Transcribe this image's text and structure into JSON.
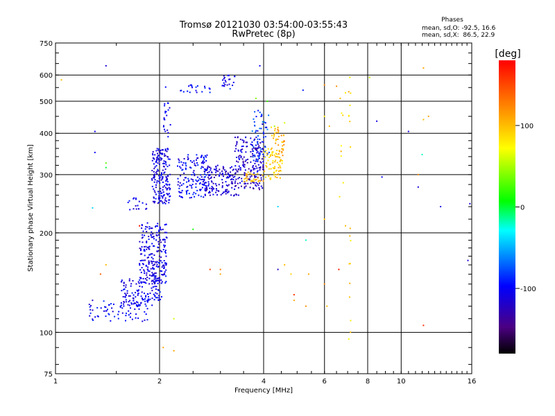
{
  "chart_data": {
    "type": "scatter",
    "title": "Tromsø 20121030 03:54:00-03:55:43",
    "subtitle": "RwPretec (8p)",
    "xlabel": "Frequency [MHz]",
    "ylabel": "Stationary phase Virtual Height [km]",
    "x_scale": "log",
    "y_scale": "log",
    "xlim": [
      1,
      16
    ],
    "ylim": [
      75,
      750
    ],
    "x_ticks": [
      1,
      2,
      4,
      6,
      8,
      10,
      16
    ],
    "x_tick_labels": [
      "1",
      "2",
      "4",
      "6",
      "8",
      "10",
      "16"
    ],
    "y_ticks": [
      75,
      100,
      200,
      300,
      400,
      500,
      600,
      750
    ],
    "y_tick_labels": [
      "75",
      "100",
      "200",
      "300",
      "400",
      "500",
      "600",
      "750"
    ],
    "grid": true,
    "phase_box": {
      "title": "Phases",
      "line_o": "mean, sd,O: -92.5, 16.6",
      "line_x": "mean, sd,X:  86.5, 22.9"
    },
    "colorbar": {
      "label": "[deg]",
      "range": [
        -180,
        180
      ],
      "ticks": [
        100,
        0,
        -100
      ],
      "tick_labels": [
        "100",
        "0",
        "-100"
      ],
      "colormap": "rainbow (black-purple-blue-cyan-green-yellow-orange-red)"
    },
    "regions": [
      {
        "f": [
          1.25,
          1.85
        ],
        "h": [
          108,
          125
        ],
        "n": 70,
        "p": [
          -120,
          -85
        ]
      },
      {
        "f": [
          1.55,
          2.05
        ],
        "h": [
          120,
          145
        ],
        "n": 130,
        "p": [
          -120,
          -85
        ]
      },
      {
        "f": [
          1.75,
          2.1
        ],
        "h": [
          140,
          215
        ],
        "n": 230,
        "p": [
          -125,
          -90
        ]
      },
      {
        "f": [
          1.9,
          2.15
        ],
        "h": [
          245,
          360
        ],
        "n": 190,
        "p": [
          -125,
          -90
        ]
      },
      {
        "f": [
          2.05,
          2.15
        ],
        "h": [
          380,
          560
        ],
        "n": 22,
        "p": [
          -120,
          -90
        ]
      },
      {
        "f": [
          2.25,
          2.75
        ],
        "h": [
          255,
          345
        ],
        "n": 150,
        "p": [
          -120,
          -80
        ]
      },
      {
        "f": [
          2.7,
          3.4
        ],
        "h": [
          258,
          320
        ],
        "n": 150,
        "p": [
          -135,
          -95
        ]
      },
      {
        "f": [
          3.3,
          4.0
        ],
        "h": [
          270,
          390
        ],
        "n": 190,
        "p": [
          -140,
          -95
        ]
      },
      {
        "f": [
          3.7,
          4.15
        ],
        "h": [
          330,
          470
        ],
        "n": 60,
        "p": [
          -110,
          -60
        ]
      },
      {
        "f": [
          3.5,
          4.0
        ],
        "h": [
          285,
          305
        ],
        "n": 30,
        "p": [
          90,
          115
        ]
      },
      {
        "f": [
          4.0,
          4.55
        ],
        "h": [
          290,
          360
        ],
        "n": 70,
        "p": [
          75,
          110
        ]
      },
      {
        "f": [
          4.2,
          4.6
        ],
        "h": [
          340,
          420
        ],
        "n": 40,
        "p": [
          85,
          130
        ]
      },
      {
        "f": [
          1.6,
          1.85
        ],
        "h": [
          235,
          255
        ],
        "n": 18,
        "p": [
          -120,
          -90
        ]
      },
      {
        "f": [
          2.3,
          2.8
        ],
        "h": [
          530,
          560
        ],
        "n": 20,
        "p": [
          -115,
          -85
        ]
      },
      {
        "f": [
          3.0,
          3.3
        ],
        "h": [
          555,
          600
        ],
        "n": 22,
        "p": [
          -125,
          -90
        ]
      },
      {
        "f": [
          7.05,
          7.15
        ],
        "h": [
          85,
          640
        ],
        "n": 18,
        "p": [
          70,
          110
        ]
      },
      {
        "f": [
          6.6,
          6.8
        ],
        "h": [
          240,
          540
        ],
        "n": 8,
        "p": [
          70,
          110
        ]
      }
    ],
    "points": [
      {
        "f": 1.04,
        "h": 580,
        "p": 100
      },
      {
        "f": 1.4,
        "h": 640,
        "p": -110
      },
      {
        "f": 1.3,
        "h": 405,
        "p": -105
      },
      {
        "f": 1.3,
        "h": 350,
        "p": -100
      },
      {
        "f": 1.4,
        "h": 315,
        "p": 0
      },
      {
        "f": 1.4,
        "h": 325,
        "p": 30
      },
      {
        "f": 1.28,
        "h": 238,
        "p": -40
      },
      {
        "f": 1.4,
        "h": 160,
        "p": 100
      },
      {
        "f": 1.35,
        "h": 150,
        "p": 140
      },
      {
        "f": 1.28,
        "h": 125,
        "p": -120
      },
      {
        "f": 1.75,
        "h": 210,
        "p": 170
      },
      {
        "f": 2.2,
        "h": 110,
        "p": 60
      },
      {
        "f": 2.05,
        "h": 90,
        "p": 110
      },
      {
        "f": 2.2,
        "h": 88,
        "p": 110
      },
      {
        "f": 2.8,
        "h": 155,
        "p": 150
      },
      {
        "f": 3.0,
        "h": 155,
        "p": 130
      },
      {
        "f": 3.0,
        "h": 150,
        "p": 110
      },
      {
        "f": 2.5,
        "h": 205,
        "p": 10
      },
      {
        "f": 3.2,
        "h": 545,
        "p": -80
      },
      {
        "f": 3.9,
        "h": 640,
        "p": -100
      },
      {
        "f": 3.8,
        "h": 510,
        "p": 40
      },
      {
        "f": 4.1,
        "h": 500,
        "p": 20
      },
      {
        "f": 4.3,
        "h": 420,
        "p": 50
      },
      {
        "f": 4.6,
        "h": 430,
        "p": 60
      },
      {
        "f": 5.2,
        "h": 540,
        "p": -90
      },
      {
        "f": 4.4,
        "h": 240,
        "p": -40
      },
      {
        "f": 5.3,
        "h": 190,
        "p": -20
      },
      {
        "f": 4.4,
        "h": 155,
        "p": -120
      },
      {
        "f": 4.6,
        "h": 160,
        "p": 100
      },
      {
        "f": 4.8,
        "h": 150,
        "p": 90
      },
      {
        "f": 4.9,
        "h": 125,
        "p": 110
      },
      {
        "f": 4.9,
        "h": 130,
        "p": 160
      },
      {
        "f": 5.4,
        "h": 150,
        "p": 110
      },
      {
        "f": 5.3,
        "h": 120,
        "p": 120
      },
      {
        "f": 6.0,
        "h": 560,
        "p": 120
      },
      {
        "f": 6.5,
        "h": 555,
        "p": 120
      },
      {
        "f": 6.9,
        "h": 530,
        "p": 80
      },
      {
        "f": 6.0,
        "h": 450,
        "p": 80
      },
      {
        "f": 6.2,
        "h": 420,
        "p": 100
      },
      {
        "f": 6.6,
        "h": 155,
        "p": 170
      },
      {
        "f": 6.0,
        "h": 140,
        "p": 120
      },
      {
        "f": 6.1,
        "h": 120,
        "p": 100
      },
      {
        "f": 6.0,
        "h": 220,
        "p": 100
      },
      {
        "f": 8.5,
        "h": 435,
        "p": -110
      },
      {
        "f": 8.8,
        "h": 295,
        "p": -100
      },
      {
        "f": 10.5,
        "h": 405,
        "p": -110
      },
      {
        "f": 11.6,
        "h": 440,
        "p": 100
      },
      {
        "f": 12.0,
        "h": 450,
        "p": 110
      },
      {
        "f": 11.5,
        "h": 345,
        "p": -20
      },
      {
        "f": 11.2,
        "h": 300,
        "p": 120
      },
      {
        "f": 11.2,
        "h": 275,
        "p": -110
      },
      {
        "f": 11.6,
        "h": 630,
        "p": 110
      },
      {
        "f": 11.6,
        "h": 105,
        "p": 160
      },
      {
        "f": 13.0,
        "h": 240,
        "p": -110
      },
      {
        "f": 15.8,
        "h": 245,
        "p": -110
      },
      {
        "f": 15.6,
        "h": 165,
        "p": -110
      },
      {
        "f": 8.1,
        "h": 590,
        "p": 60
      },
      {
        "f": 6.9,
        "h": 210,
        "p": 100
      }
    ]
  }
}
